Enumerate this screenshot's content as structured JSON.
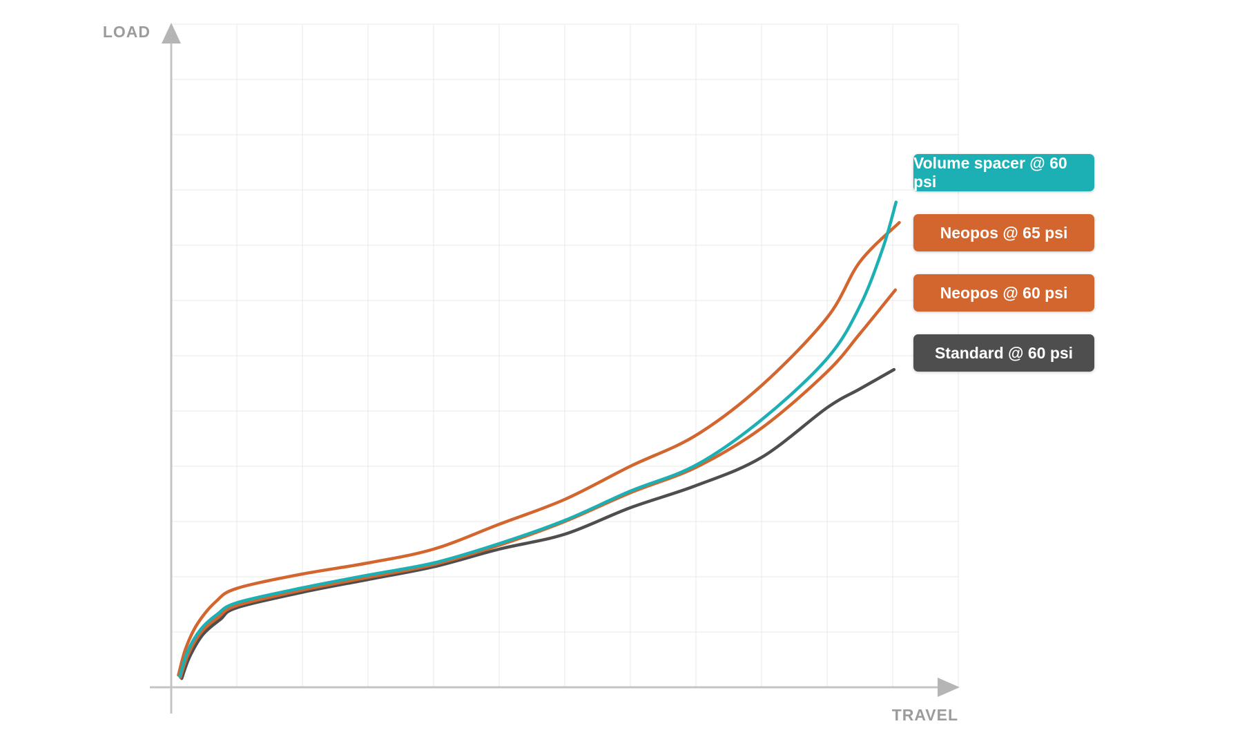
{
  "chart_data": {
    "type": "line",
    "title": "",
    "xlabel": "TRAVEL",
    "ylabel": "LOAD",
    "x_range": [
      0,
      12
    ],
    "y_range": [
      0,
      12
    ],
    "grid": "on",
    "tick_labels": "none",
    "legend_position": "right",
    "axis_color": "#c4c4c4",
    "arrow_color": "#b5b5b5",
    "gridline_color": "#e9e9e9",
    "label_color": "#9b9b9b",
    "series": [
      {
        "name": "Volume spacer @ 60 psi",
        "color": "#1cb0b5",
        "points": [
          [
            0.13,
            0.2
          ],
          [
            0.25,
            0.65
          ],
          [
            0.45,
            1.05
          ],
          [
            0.7,
            1.32
          ],
          [
            1,
            1.53
          ],
          [
            2,
            1.8
          ],
          [
            3,
            2.03
          ],
          [
            4,
            2.25
          ],
          [
            5,
            2.6
          ],
          [
            6,
            3.02
          ],
          [
            7,
            3.55
          ],
          [
            8,
            4.02
          ],
          [
            9,
            4.84
          ],
          [
            10,
            5.95
          ],
          [
            10.5,
            6.9
          ],
          [
            10.85,
            7.95
          ],
          [
            11.05,
            8.78
          ]
        ]
      },
      {
        "name": "Neopos @ 65 psi",
        "color": "#d2662e",
        "points": [
          [
            0.11,
            0.22
          ],
          [
            0.22,
            0.7
          ],
          [
            0.4,
            1.15
          ],
          [
            0.68,
            1.55
          ],
          [
            1,
            1.79
          ],
          [
            2,
            2.05
          ],
          [
            3,
            2.25
          ],
          [
            4,
            2.5
          ],
          [
            5,
            2.95
          ],
          [
            6,
            3.4
          ],
          [
            7,
            4.0
          ],
          [
            8,
            4.56
          ],
          [
            9,
            5.46
          ],
          [
            10,
            6.69
          ],
          [
            10.5,
            7.7
          ],
          [
            11.1,
            8.41
          ]
        ]
      },
      {
        "name": "Neopos @ 60 psi",
        "color": "#d2662e",
        "points": [
          [
            0.14,
            0.18
          ],
          [
            0.26,
            0.6
          ],
          [
            0.46,
            1.0
          ],
          [
            0.72,
            1.27
          ],
          [
            1,
            1.48
          ],
          [
            2,
            1.76
          ],
          [
            3,
            1.99
          ],
          [
            4,
            2.22
          ],
          [
            5,
            2.57
          ],
          [
            6,
            3.0
          ],
          [
            7,
            3.52
          ],
          [
            8,
            3.98
          ],
          [
            9,
            4.69
          ],
          [
            10,
            5.71
          ],
          [
            10.5,
            6.4
          ],
          [
            11.04,
            7.19
          ]
        ]
      },
      {
        "name": "Standard @ 60 psi",
        "color": "#4e4e4e",
        "points": [
          [
            0.16,
            0.16
          ],
          [
            0.28,
            0.55
          ],
          [
            0.48,
            0.95
          ],
          [
            0.75,
            1.23
          ],
          [
            1,
            1.44
          ],
          [
            2,
            1.72
          ],
          [
            3,
            1.95
          ],
          [
            4,
            2.18
          ],
          [
            5,
            2.5
          ],
          [
            6,
            2.77
          ],
          [
            7,
            3.25
          ],
          [
            8,
            3.65
          ],
          [
            9,
            4.16
          ],
          [
            10,
            5.06
          ],
          [
            10.5,
            5.4
          ],
          [
            11.02,
            5.75
          ]
        ]
      }
    ]
  }
}
